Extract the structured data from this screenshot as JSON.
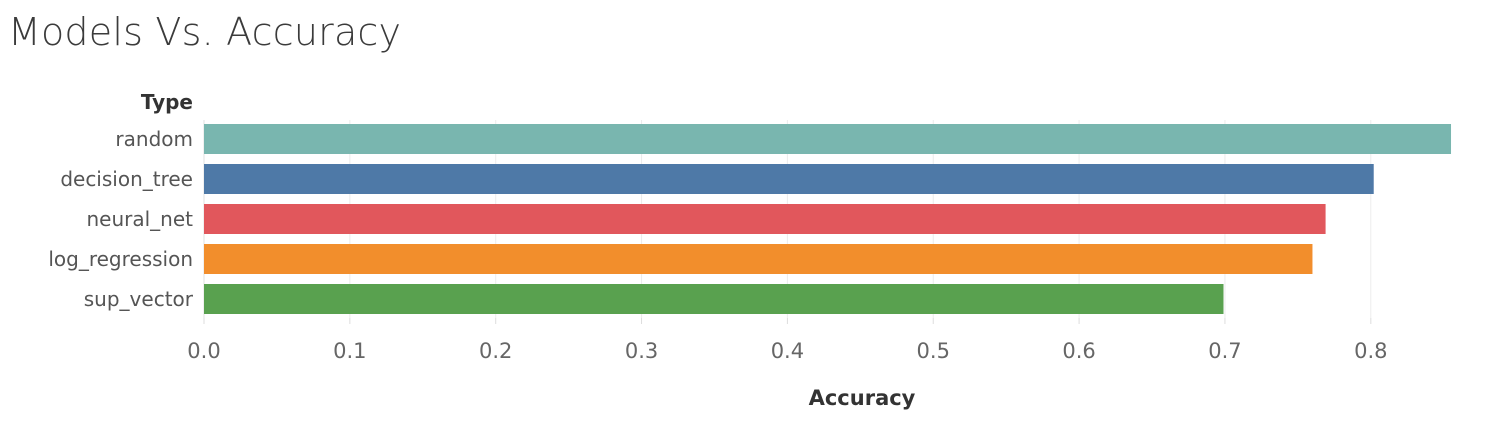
{
  "title": "Models Vs. Accuracy",
  "chart_data": {
    "type": "bar",
    "orientation": "horizontal",
    "title": "Models Vs. Accuracy",
    "category_header": "Type",
    "xlabel": "Accuracy",
    "ylabel": "",
    "xlim": [
      0,
      0.86
    ],
    "xticks": [
      0.0,
      0.1,
      0.2,
      0.3,
      0.4,
      0.5,
      0.6,
      0.7,
      0.8
    ],
    "xtick_labels": [
      "0.0",
      "0.1",
      "0.2",
      "0.3",
      "0.4",
      "0.5",
      "0.6",
      "0.7",
      "0.8"
    ],
    "grid": true,
    "categories": [
      "random",
      "decision_tree",
      "neural_net",
      "log_regression",
      "sup_vector"
    ],
    "values": [
      0.855,
      0.802,
      0.769,
      0.76,
      0.699
    ],
    "colors": [
      "#79b6af",
      "#4e79a7",
      "#e1575c",
      "#f28e2c",
      "#59a14f"
    ]
  }
}
